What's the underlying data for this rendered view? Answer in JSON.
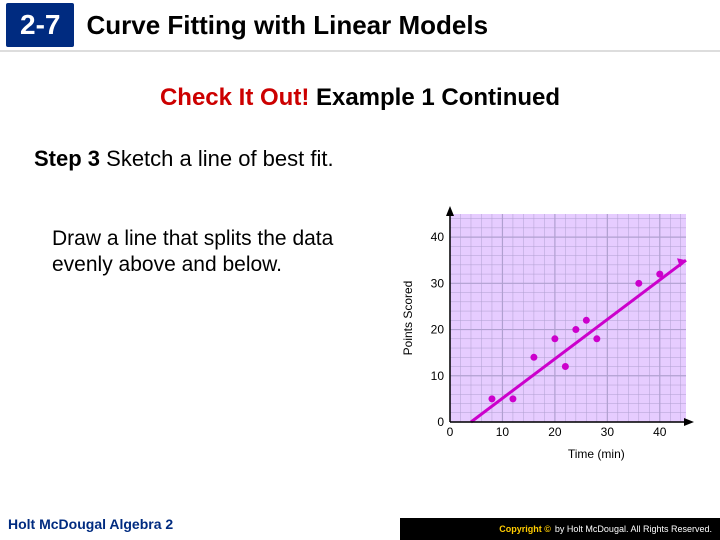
{
  "header": {
    "section": "2-7",
    "title": "Curve Fitting with Linear Models"
  },
  "subtitle": {
    "red": "Check It Out!",
    "black": " Example 1 Continued"
  },
  "step": {
    "label": "Step 3",
    "text": " Sketch a line of best fit."
  },
  "body": "Draw a line that splits the data evenly above and below.",
  "chart": {
    "type": "scatter-with-line",
    "xlabel": "Time (min)",
    "ylabel": "Points Scored",
    "xlim": [
      0,
      45
    ],
    "ylim": [
      0,
      45
    ],
    "xticks": [
      0,
      10,
      20,
      30,
      40
    ],
    "yticks": [
      0,
      10,
      20,
      30,
      40
    ],
    "grid_major": 10,
    "grid_minor": 2,
    "background_color": "#e6ccff",
    "grid_color": "#b0a0d0",
    "axis_color": "#000000",
    "label_fontsize": 12,
    "tick_fontsize": 12,
    "points": [
      {
        "x": 8,
        "y": 5
      },
      {
        "x": 12,
        "y": 5
      },
      {
        "x": 16,
        "y": 14
      },
      {
        "x": 20,
        "y": 18
      },
      {
        "x": 22,
        "y": 12
      },
      {
        "x": 24,
        "y": 20
      },
      {
        "x": 26,
        "y": 22
      },
      {
        "x": 28,
        "y": 18
      },
      {
        "x": 36,
        "y": 30
      },
      {
        "x": 40,
        "y": 32
      }
    ],
    "point_color": "#cc00cc",
    "point_radius": 3.5,
    "line": {
      "x1": 4,
      "y1": 0,
      "x2": 45,
      "y2": 35,
      "color": "#cc00cc",
      "width": 3
    },
    "arrow_color": "#000000"
  },
  "footer": {
    "left": "Holt McDougal Algebra 2",
    "right_prefix": "Copyright ©",
    "right_text": "by Holt McDougal. All Rights Reserved."
  }
}
